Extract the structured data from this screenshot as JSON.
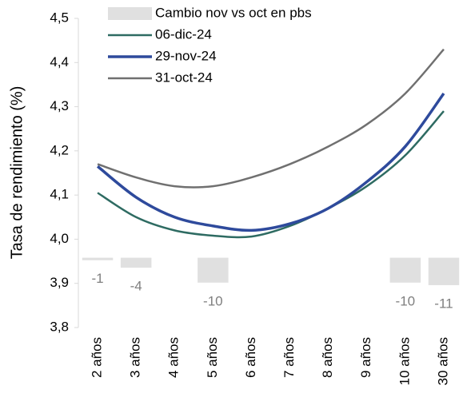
{
  "chart_data": {
    "type": "line",
    "y_label": "Tasa de rendimiento (%)",
    "categories": [
      "2 años",
      "3 años",
      "4 años",
      "5 años",
      "6 años",
      "7 años",
      "8 años",
      "9 años",
      "10 años",
      "30 años"
    ],
    "ylim": [
      3.8,
      4.5
    ],
    "yticks": [
      {
        "value": 3.8,
        "label": "3,8"
      },
      {
        "value": 3.9,
        "label": "3,9"
      },
      {
        "value": 4.0,
        "label": "4,0"
      },
      {
        "value": 4.1,
        "label": "4,1"
      },
      {
        "value": 4.2,
        "label": "4,2"
      },
      {
        "value": 4.3,
        "label": "4,3"
      },
      {
        "value": 4.4,
        "label": "4,4"
      },
      {
        "value": 4.5,
        "label": "4,5"
      }
    ],
    "y2lim": [
      -28,
      96
    ],
    "series": [
      {
        "name": "Cambio nov vs oct en pbs",
        "type": "bar",
        "axis": "y2",
        "color": "#e0e0e0",
        "values": [
          -1,
          -4,
          null,
          -10,
          null,
          null,
          null,
          null,
          -10,
          -11
        ]
      },
      {
        "name": "06-dic-24",
        "color": "#2e6b62",
        "values": [
          4.105,
          4.05,
          4.02,
          4.008,
          4.006,
          4.03,
          4.07,
          4.12,
          4.19,
          4.29
        ]
      },
      {
        "name": "29-nov-24",
        "color": "#2e4a9c",
        "values": [
          4.165,
          4.095,
          4.05,
          4.03,
          4.02,
          4.035,
          4.07,
          4.13,
          4.21,
          4.33
        ]
      },
      {
        "name": "31-oct-24",
        "color": "#707070",
        "values": [
          4.17,
          4.14,
          4.12,
          4.12,
          4.14,
          4.17,
          4.21,
          4.26,
          4.33,
          4.43
        ]
      }
    ]
  }
}
